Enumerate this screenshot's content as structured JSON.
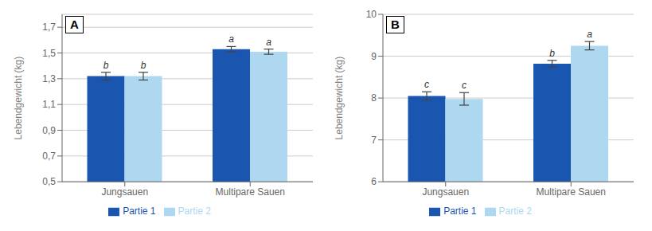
{
  "chart_data": [
    {
      "type": "bar",
      "title": "A",
      "categories": [
        "Jungsauen",
        "Multipare Sauen"
      ],
      "series": [
        {
          "name": "Partie 1",
          "color": "#1a56b0",
          "values": [
            1.32,
            1.53
          ],
          "errors": [
            0.03,
            0.02
          ],
          "annotations": [
            "b",
            "a"
          ]
        },
        {
          "name": "Partie 2",
          "color": "#add8f0",
          "values": [
            1.32,
            1.51
          ],
          "errors": [
            0.03,
            0.02
          ],
          "annotations": [
            "b",
            "a"
          ]
        }
      ],
      "ylabel": "Lebendgewicht (kg)",
      "ylim": [
        0.5,
        1.8
      ],
      "yticks": [
        {
          "value": 0.5,
          "label": "0,5"
        },
        {
          "value": 0.7,
          "label": "0,7"
        },
        {
          "value": 0.9,
          "label": "0,9"
        },
        {
          "value": 1.1,
          "label": "1,1"
        },
        {
          "value": 1.3,
          "label": "1,3"
        },
        {
          "value": 1.5,
          "label": "1,5"
        },
        {
          "value": 1.7,
          "label": "1,7"
        }
      ],
      "grid": true,
      "legend": "bottom"
    },
    {
      "type": "bar",
      "title": "B",
      "categories": [
        "Jungsauen",
        "Multipare Sauen"
      ],
      "series": [
        {
          "name": "Partie 1",
          "color": "#1a56b0",
          "values": [
            8.05,
            8.82
          ],
          "errors": [
            0.1,
            0.08
          ],
          "annotations": [
            "c",
            "b"
          ]
        },
        {
          "name": "Partie 2",
          "color": "#add8f0",
          "values": [
            7.98,
            9.25
          ],
          "errors": [
            0.15,
            0.1
          ],
          "annotations": [
            "c",
            "a"
          ]
        }
      ],
      "ylabel": "Lebendgewicht (kg)",
      "ylim": [
        6,
        10
      ],
      "yticks": [
        6,
        7,
        8,
        9,
        10
      ],
      "grid": true,
      "legend": "bottom"
    }
  ]
}
